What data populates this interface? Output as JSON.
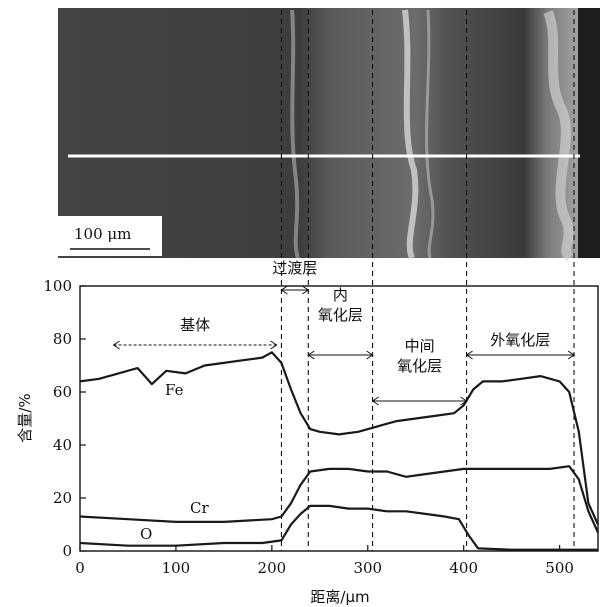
{
  "image_scale_label": "100 μm",
  "chart_data": {
    "type": "line",
    "xlabel": "距离/μm",
    "ylabel": "含量/%",
    "xlim": [
      0,
      540
    ],
    "ylim": [
      0,
      100
    ],
    "xticks": [
      0,
      100,
      200,
      300,
      400,
      500
    ],
    "yticks": [
      0,
      20,
      40,
      60,
      80,
      100
    ],
    "boundaries": [
      210,
      238,
      305,
      403,
      515
    ],
    "zones": [
      {
        "label": "基体",
        "x_start": 35,
        "x_end": 205
      },
      {
        "label": "过渡层",
        "x_start": 210,
        "x_end": 238
      },
      {
        "label": "内\n氧化层",
        "x_start": 238,
        "x_end": 305
      },
      {
        "label": "中间\n氧化层",
        "x_start": 305,
        "x_end": 403
      },
      {
        "label": "外氧化层",
        "x_start": 403,
        "x_end": 515
      }
    ],
    "series": [
      {
        "name": "Fe",
        "x": [
          0,
          20,
          40,
          60,
          75,
          90,
          110,
          130,
          150,
          170,
          190,
          200,
          210,
          220,
          230,
          240,
          250,
          270,
          290,
          310,
          330,
          350,
          370,
          390,
          400,
          410,
          420,
          440,
          460,
          480,
          500,
          510,
          520,
          530,
          540
        ],
        "y": [
          64,
          65,
          67,
          69,
          63,
          68,
          67,
          70,
          71,
          72,
          73,
          75,
          71,
          61,
          52,
          46,
          45,
          44,
          45,
          47,
          49,
          50,
          51,
          52,
          55,
          61,
          64,
          64,
          65,
          66,
          64,
          60,
          45,
          18,
          10
        ]
      },
      {
        "name": "Cr",
        "x": [
          0,
          50,
          100,
          150,
          200,
          210,
          220,
          230,
          240,
          260,
          280,
          300,
          320,
          340,
          360,
          380,
          400,
          410,
          430,
          460,
          490,
          510,
          520,
          530,
          540
        ],
        "y": [
          13,
          12,
          11,
          11,
          12,
          13,
          18,
          25,
          30,
          31,
          31,
          30,
          30,
          28,
          29,
          30,
          31,
          31,
          31,
          31,
          31,
          32,
          27,
          15,
          7
        ]
      },
      {
        "name": "O",
        "x": [
          0,
          50,
          100,
          150,
          190,
          210,
          220,
          230,
          240,
          260,
          280,
          300,
          320,
          340,
          360,
          380,
          395,
          405,
          415,
          450,
          500,
          540
        ],
        "y": [
          3,
          2,
          2,
          3,
          3,
          4,
          10,
          14,
          17,
          17,
          16,
          16,
          15,
          15,
          14,
          13,
          12,
          6,
          1,
          0.5,
          0.5,
          0.5
        ]
      }
    ]
  }
}
